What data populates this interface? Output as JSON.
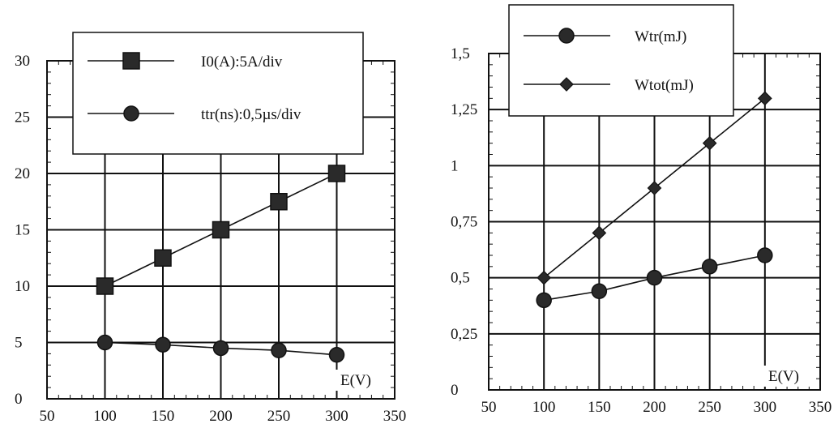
{
  "chart_data": [
    {
      "type": "line",
      "xlabel": "E(V)",
      "ylabel": "",
      "xlim": [
        50,
        350
      ],
      "ylim": [
        0,
        30
      ],
      "x_ticks": [
        50,
        100,
        150,
        200,
        250,
        300,
        350
      ],
      "x_tick_labels": [
        "50",
        "100",
        "150",
        "200",
        "250",
        "300",
        "350"
      ],
      "y_ticks": [
        0,
        5,
        10,
        15,
        20,
        25,
        30
      ],
      "y_tick_labels": [
        "0",
        "5",
        "10",
        "15",
        "20",
        "25",
        "30"
      ],
      "grid": true,
      "legend_position": "top",
      "series": [
        {
          "name": "I0(A):5A/div",
          "marker": "square",
          "x": [
            100,
            150,
            200,
            250,
            300
          ],
          "values": [
            10,
            12.5,
            15,
            17.5,
            20
          ]
        },
        {
          "name": "ttr(ns):0,5µs/div",
          "marker": "circle",
          "x": [
            100,
            150,
            200,
            250,
            300
          ],
          "values": [
            5,
            4.8,
            4.5,
            4.3,
            3.9
          ]
        }
      ]
    },
    {
      "type": "line",
      "xlabel": "E(V)",
      "ylabel": "",
      "xlim": [
        50,
        350
      ],
      "ylim": [
        0,
        1.5
      ],
      "x_ticks": [
        50,
        100,
        150,
        200,
        250,
        300,
        350
      ],
      "x_tick_labels": [
        "50",
        "100",
        "150",
        "200",
        "250",
        "300",
        "350"
      ],
      "y_ticks": [
        0,
        0.25,
        0.5,
        0.75,
        1,
        1.25,
        1.5
      ],
      "y_tick_labels": [
        "0",
        "0,25",
        "0,5",
        "0,75",
        "1",
        "1,25",
        "1,5"
      ],
      "grid": true,
      "legend_position": "top-left",
      "series": [
        {
          "name": "Wtr(mJ)",
          "marker": "circle",
          "x": [
            100,
            150,
            200,
            250,
            300
          ],
          "values": [
            0.4,
            0.44,
            0.5,
            0.55,
            0.6
          ]
        },
        {
          "name": "Wtot(mJ)",
          "marker": "diamond",
          "x": [
            100,
            150,
            200,
            250,
            300
          ],
          "values": [
            0.5,
            0.7,
            0.9,
            1.1,
            1.3
          ]
        }
      ]
    }
  ]
}
